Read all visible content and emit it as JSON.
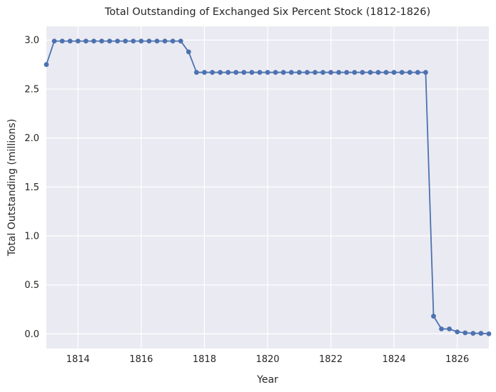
{
  "chart_data": {
    "type": "line",
    "title": "Total Outstanding of Exchanged Six Percent Stock (1812-1826)",
    "xlabel": "Year",
    "ylabel": "Total Outstanding (millions)",
    "xlim": [
      1813.0,
      1827.0
    ],
    "ylim": [
      -0.15,
      3.14
    ],
    "xticks": [
      1814,
      1816,
      1818,
      1820,
      1822,
      1824,
      1826
    ],
    "yticks": [
      0.0,
      0.5,
      1.0,
      1.5,
      2.0,
      2.5,
      3.0
    ],
    "ytick_format_decimals": 1,
    "grid": true,
    "legend": "none",
    "colors": {
      "background": "#eaeaf2",
      "grid": "#ffffff",
      "line": "#4c72b0"
    },
    "series": [
      {
        "x": [
          1813.0,
          1813.25,
          1813.5,
          1813.75,
          1814.0,
          1814.25,
          1814.5,
          1814.75,
          1815.0,
          1815.25,
          1815.5,
          1815.75,
          1816.0,
          1816.25,
          1816.5,
          1816.75,
          1817.0,
          1817.25,
          1817.5,
          1817.75,
          1818.0,
          1818.25,
          1818.5,
          1818.75,
          1819.0,
          1819.25,
          1819.5,
          1819.75,
          1820.0,
          1820.25,
          1820.5,
          1820.75,
          1821.0,
          1821.25,
          1821.5,
          1821.75,
          1822.0,
          1822.25,
          1822.5,
          1822.75,
          1823.0,
          1823.25,
          1823.5,
          1823.75,
          1824.0,
          1824.25,
          1824.5,
          1824.75,
          1825.0,
          1825.25,
          1825.5,
          1825.75,
          1826.0,
          1826.25,
          1826.5,
          1826.75,
          1827.0
        ],
        "values": [
          2.75,
          2.99,
          2.99,
          2.99,
          2.99,
          2.99,
          2.99,
          2.99,
          2.99,
          2.99,
          2.99,
          2.99,
          2.99,
          2.99,
          2.99,
          2.99,
          2.99,
          2.99,
          2.88,
          2.67,
          2.67,
          2.67,
          2.67,
          2.67,
          2.67,
          2.67,
          2.67,
          2.67,
          2.67,
          2.67,
          2.67,
          2.67,
          2.67,
          2.67,
          2.67,
          2.67,
          2.67,
          2.67,
          2.67,
          2.67,
          2.67,
          2.67,
          2.67,
          2.67,
          2.67,
          2.67,
          2.67,
          2.67,
          2.67,
          0.18,
          0.05,
          0.05,
          0.02,
          0.01,
          0.005,
          0.005,
          0.0
        ]
      }
    ]
  }
}
